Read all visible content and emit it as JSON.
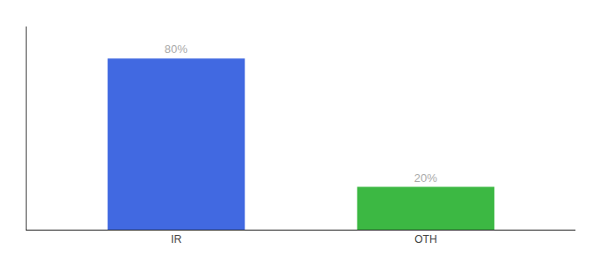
{
  "chart_data": {
    "type": "bar",
    "categories": [
      "IR",
      "OTH"
    ],
    "values": [
      80,
      20
    ],
    "value_labels": [
      "80%",
      "20%"
    ],
    "colors": [
      "#4169e1",
      "#3cb843"
    ],
    "ylim": [
      0,
      95
    ],
    "data_labels": true,
    "tick_labels": "x",
    "grid": false
  }
}
